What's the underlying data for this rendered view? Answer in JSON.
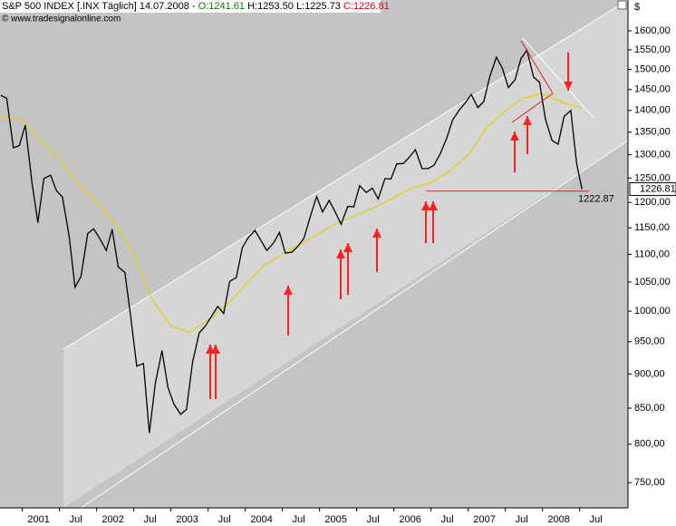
{
  "header": {
    "instrument": "S&P 500 INDEX [.INX  Täglich] 14.07.2008 -",
    "open": "O:1241.61",
    "high": "H:1253.50",
    "low": "L:1225.73",
    "close": "C:1226.81",
    "source": "© www.tradesignalonline.com"
  },
  "chart_data": {
    "type": "line",
    "log_y": true,
    "grid": false,
    "y_unit": "$",
    "xlim": [
      2000.7,
      2009.15
    ],
    "ylim": [
      719,
      1685
    ],
    "xticks": [
      2001,
      {
        "value": 2001.5,
        "label": "Jul"
      },
      2002,
      {
        "value": 2002.5,
        "label": "Jul"
      },
      2003,
      {
        "value": 2003.5,
        "label": "Jul"
      },
      2004,
      {
        "value": 2004.5,
        "label": "Jul"
      },
      2005,
      {
        "value": 2005.5,
        "label": "Jul"
      },
      2006,
      {
        "value": 2006.5,
        "label": "Jul"
      },
      2007,
      {
        "value": 2007.5,
        "label": "Jul"
      },
      2008,
      {
        "value": 2008.5,
        "label": "Jul"
      }
    ],
    "yticks": [
      {
        "value": 750,
        "label": "750,00"
      },
      {
        "value": 800,
        "label": "800,00"
      },
      {
        "value": 850,
        "label": "850,00"
      },
      {
        "value": 900,
        "label": "900,00"
      },
      {
        "value": 950,
        "label": "950,00"
      },
      {
        "value": 1000,
        "label": "1000,00"
      },
      {
        "value": 1050,
        "label": "1050,00"
      },
      {
        "value": 1100,
        "label": "1100,00"
      },
      {
        "value": 1150,
        "label": "1150,00"
      },
      {
        "value": 1200,
        "label": "1200,00"
      },
      {
        "value": 1250,
        "label": "1250,00"
      },
      {
        "value": 1300,
        "label": "1300,00"
      },
      {
        "value": 1350,
        "label": "1350,00"
      },
      {
        "value": 1400,
        "label": "1400,00"
      },
      {
        "value": 1450,
        "label": "1450,00"
      },
      {
        "value": 1500,
        "label": "1500,00"
      },
      {
        "value": 1550,
        "label": "1550,00"
      },
      {
        "value": 1600,
        "label": "1600,00"
      }
    ],
    "series": [
      {
        "color": "#000000",
        "x": [
          2000.71,
          2000.79,
          2000.88,
          2000.96,
          2001.04,
          2001.13,
          2001.21,
          2001.29,
          2001.38,
          2001.46,
          2001.54,
          2001.63,
          2001.71,
          2001.79,
          2001.88,
          2001.96,
          2002.04,
          2002.13,
          2002.21,
          2002.29,
          2002.38,
          2002.46,
          2002.54,
          2002.63,
          2002.71,
          2002.79,
          2002.88,
          2002.96,
          2003.04,
          2003.13,
          2003.21,
          2003.29,
          2003.38,
          2003.46,
          2003.54,
          2003.63,
          2003.71,
          2003.79,
          2003.88,
          2003.96,
          2004.04,
          2004.13,
          2004.21,
          2004.29,
          2004.38,
          2004.46,
          2004.54,
          2004.63,
          2004.71,
          2004.79,
          2004.88,
          2004.96,
          2005.04,
          2005.13,
          2005.21,
          2005.29,
          2005.38,
          2005.46,
          2005.54,
          2005.63,
          2005.71,
          2005.79,
          2005.88,
          2005.96,
          2006.04,
          2006.13,
          2006.21,
          2006.29,
          2006.38,
          2006.46,
          2006.54,
          2006.63,
          2006.71,
          2006.79,
          2006.88,
          2006.96,
          2007.04,
          2007.13,
          2007.21,
          2007.29,
          2007.38,
          2007.46,
          2007.54,
          2007.63,
          2007.71,
          2007.79,
          2007.88,
          2007.96,
          2008.04,
          2008.13,
          2008.21,
          2008.29,
          2008.38,
          2008.46,
          2008.53
        ],
        "values": [
          1436,
          1429,
          1315,
          1320,
          1366,
          1240,
          1160,
          1249,
          1256,
          1224,
          1211,
          1134,
          1041,
          1060,
          1139,
          1148,
          1130,
          1107,
          1147,
          1077,
          1067,
          990,
          912,
          916,
          815,
          886,
          936,
          880,
          856,
          841,
          848,
          917,
          964,
          975,
          990,
          1008,
          996,
          1051,
          1058,
          1112,
          1131,
          1145,
          1126,
          1107,
          1121,
          1141,
          1102,
          1104,
          1115,
          1130,
          1174,
          1212,
          1181,
          1204,
          1181,
          1157,
          1192,
          1191,
          1234,
          1220,
          1229,
          1207,
          1249,
          1248,
          1280,
          1281,
          1295,
          1311,
          1270,
          1270,
          1277,
          1304,
          1336,
          1378,
          1401,
          1418,
          1438,
          1407,
          1421,
          1482,
          1531,
          1503,
          1455,
          1474,
          1527,
          1549,
          1481,
          1468,
          1379,
          1331,
          1323,
          1386,
          1400,
          1280,
          1227
        ]
      },
      {
        "color": "#e8d000",
        "x": [
          2000.71,
          2001.0,
          2001.25,
          2001.5,
          2001.75,
          2002.0,
          2002.25,
          2002.5,
          2002.75,
          2003.0,
          2003.25,
          2003.5,
          2003.75,
          2004.0,
          2004.25,
          2004.5,
          2004.75,
          2005.0,
          2005.25,
          2005.5,
          2005.75,
          2006.0,
          2006.25,
          2006.5,
          2006.75,
          2007.0,
          2007.25,
          2007.5,
          2007.75,
          2008.0,
          2008.25,
          2008.53
        ],
        "values": [
          1385,
          1380,
          1330,
          1290,
          1240,
          1200,
          1160,
          1100,
          1020,
          975,
          965,
          985,
          1010,
          1045,
          1080,
          1100,
          1120,
          1140,
          1160,
          1175,
          1190,
          1210,
          1230,
          1240,
          1265,
          1300,
          1360,
          1400,
          1430,
          1440,
          1420,
          1405
        ]
      }
    ],
    "support": 1222.87,
    "support_label": "1222.87",
    "last_label": "1226.81"
  }
}
